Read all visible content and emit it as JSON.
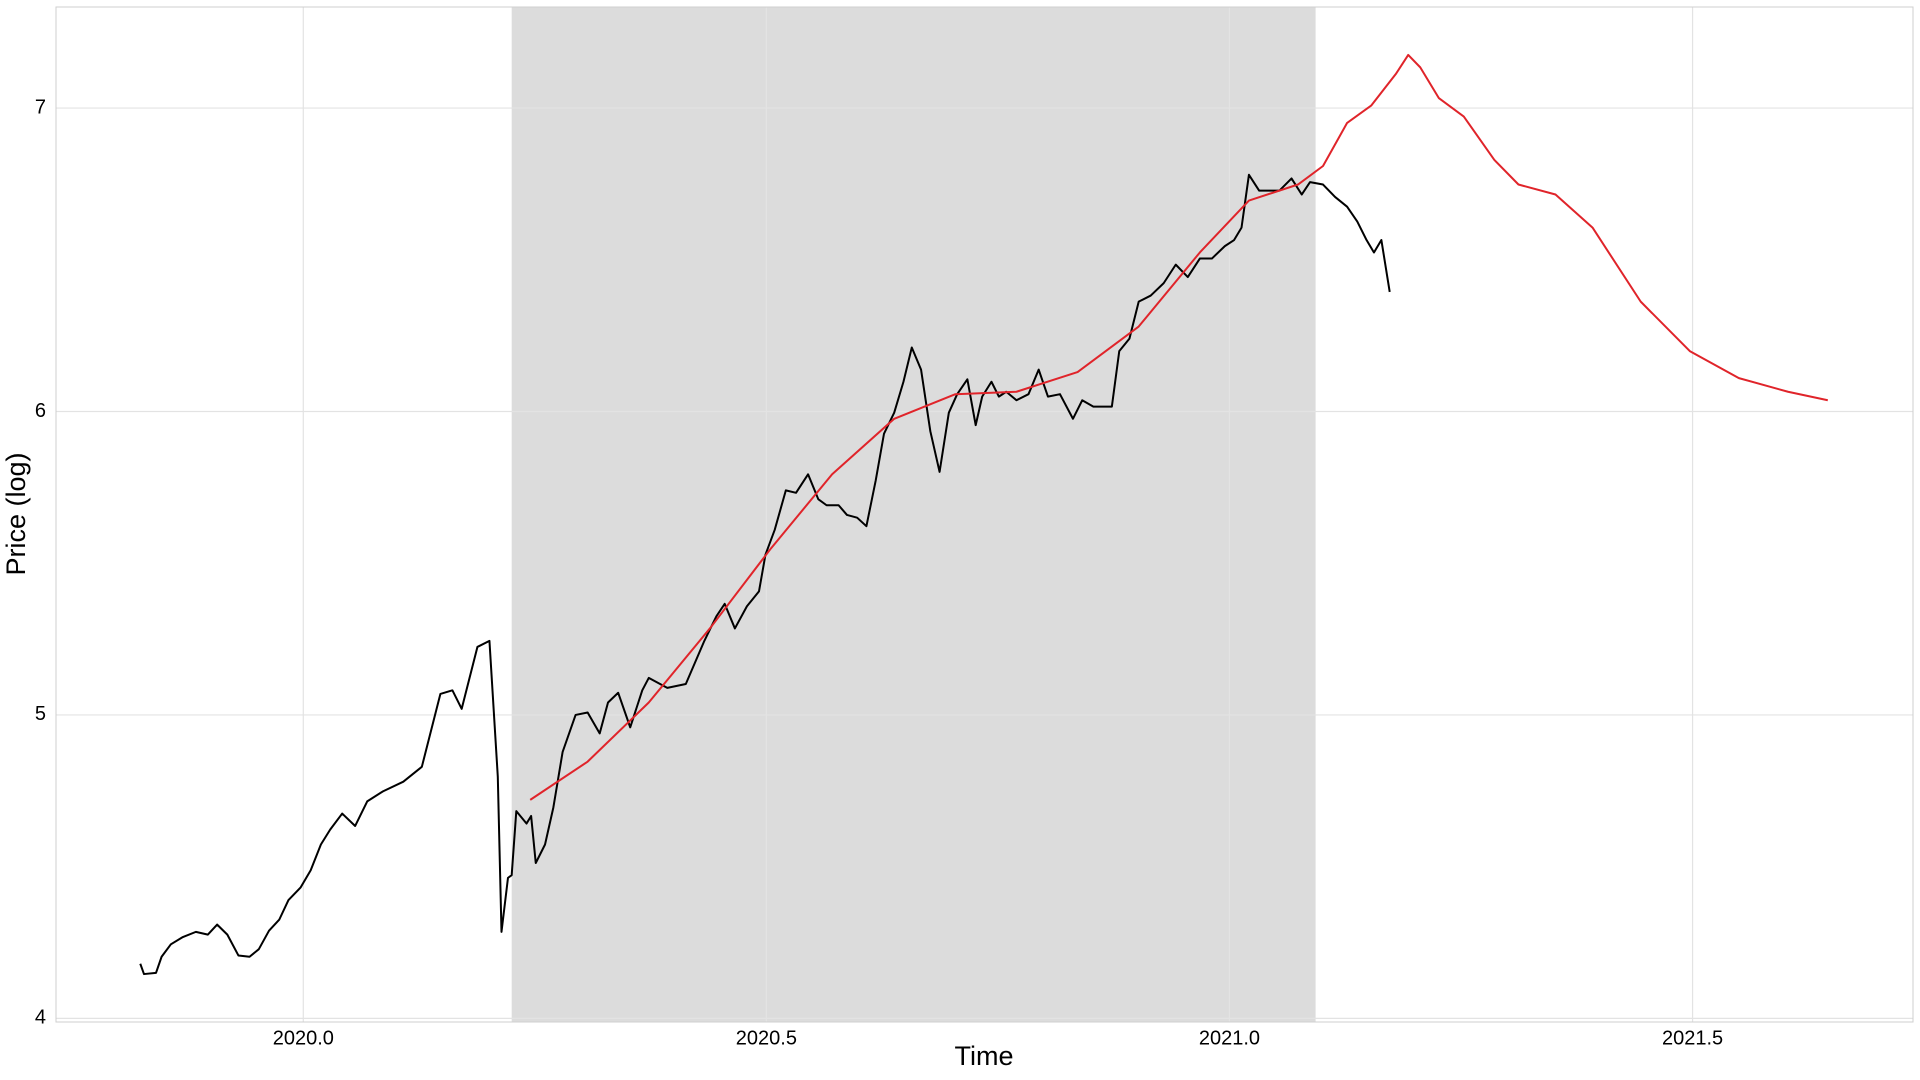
{
  "chart_data": {
    "type": "line",
    "x_label": "Time",
    "y_label": "Price (log)",
    "xlim": [
      2019.733,
      2021.738
    ],
    "ylim": [
      3.988,
      7.333
    ],
    "xticks": [
      {
        "value": 2020,
        "label": "2020.0"
      },
      {
        "value": 2020.5,
        "label": "2020.5"
      },
      {
        "value": 2021,
        "label": "2021.0"
      },
      {
        "value": 2021.5,
        "label": "2021.5"
      }
    ],
    "yticks": [
      4,
      5,
      6,
      7
    ],
    "grid": true,
    "shaded_region": [
      2020.225,
      2021.093
    ],
    "shade_color": "#dcdcdc",
    "series": [
      {
        "color": "#000000",
        "x": [
          2019.824,
          2019.828,
          2019.841,
          2019.847,
          2019.857,
          2019.87,
          2019.884,
          2019.897,
          2019.907,
          2019.918,
          2019.93,
          2019.942,
          2019.952,
          2019.963,
          2019.974,
          2019.984,
          2019.997,
          2020.008,
          2020.019,
          2020.029,
          2020.042,
          2020.056,
          2020.069,
          2020.086,
          2020.108,
          2020.128,
          2020.148,
          2020.161,
          2020.171,
          2020.188,
          2020.201,
          2020.21,
          2020.214,
          2020.221,
          2020.225,
          2020.23,
          2020.241,
          2020.246,
          2020.251,
          2020.261,
          2020.27,
          2020.28,
          2020.294,
          2020.307,
          2020.32,
          2020.329,
          2020.34,
          2020.353,
          2020.366,
          2020.373,
          2020.393,
          2020.413,
          2020.433,
          2020.446,
          2020.455,
          2020.466,
          2020.479,
          2020.492,
          2020.499,
          2020.509,
          2020.521,
          2020.532,
          2020.545,
          2020.556,
          2020.565,
          2020.578,
          2020.587,
          2020.598,
          2020.608,
          2020.618,
          2020.627,
          2020.638,
          2020.648,
          2020.657,
          2020.667,
          2020.677,
          2020.687,
          2020.697,
          2020.706,
          2020.717,
          2020.726,
          2020.733,
          2020.743,
          2020.751,
          2020.759,
          2020.77,
          2020.783,
          2020.794,
          2020.804,
          2020.817,
          2020.831,
          2020.841,
          2020.853,
          2020.862,
          2020.873,
          2020.881,
          2020.892,
          2020.902,
          2020.915,
          2020.929,
          2020.942,
          2020.955,
          2020.968,
          2020.981,
          2020.995,
          2021.005,
          2021.013,
          2021.021,
          2021.032,
          2021.041,
          2021.054,
          2021.067,
          2021.078,
          2021.087,
          2021.101,
          2021.114,
          2021.127,
          2021.138,
          2021.148,
          2021.156,
          2021.164,
          2021.173
        ],
        "values": [
          4.18,
          4.146,
          4.15,
          4.203,
          4.244,
          4.268,
          4.285,
          4.276,
          4.309,
          4.276,
          4.207,
          4.203,
          4.228,
          4.289,
          4.325,
          4.39,
          4.431,
          4.488,
          4.573,
          4.622,
          4.675,
          4.634,
          4.715,
          4.748,
          4.78,
          4.829,
          5.069,
          5.081,
          5.02,
          5.224,
          5.244,
          4.797,
          4.285,
          4.463,
          4.472,
          4.683,
          4.642,
          4.667,
          4.512,
          4.573,
          4.695,
          4.878,
          5.0,
          5.008,
          4.939,
          5.041,
          5.073,
          4.959,
          5.081,
          5.122,
          5.089,
          5.102,
          5.244,
          5.325,
          5.366,
          5.285,
          5.358,
          5.407,
          5.528,
          5.61,
          5.74,
          5.732,
          5.793,
          5.711,
          5.691,
          5.691,
          5.659,
          5.65,
          5.622,
          5.772,
          5.927,
          5.996,
          6.098,
          6.211,
          6.138,
          5.935,
          5.801,
          5.996,
          6.057,
          6.106,
          5.955,
          6.049,
          6.098,
          6.049,
          6.065,
          6.037,
          6.057,
          6.138,
          6.049,
          6.057,
          5.976,
          6.037,
          6.016,
          6.016,
          6.016,
          6.199,
          6.24,
          6.362,
          6.382,
          6.423,
          6.484,
          6.443,
          6.504,
          6.504,
          6.545,
          6.565,
          6.606,
          6.78,
          6.728,
          6.728,
          6.728,
          6.768,
          6.715,
          6.756,
          6.748,
          6.707,
          6.675,
          6.626,
          6.565,
          6.524,
          6.565,
          6.394
        ]
      },
      {
        "color": "#e0242a",
        "x": [
          2020.245,
          2020.307,
          2020.373,
          2020.439,
          2020.505,
          2020.571,
          2020.638,
          2020.704,
          2020.77,
          2020.836,
          2020.902,
          2020.968,
          2021.021,
          2021.074,
          2021.101,
          2021.127,
          2021.153,
          2021.18,
          2021.193,
          2021.206,
          2021.226,
          2021.253,
          2021.286,
          2021.312,
          2021.352,
          2021.392,
          2021.444,
          2021.497,
          2021.55,
          2021.603,
          2021.646
        ],
        "values": [
          4.72,
          4.846,
          5.041,
          5.285,
          5.549,
          5.793,
          5.976,
          6.057,
          6.065,
          6.13,
          6.28,
          6.524,
          6.695,
          6.748,
          6.809,
          6.951,
          7.008,
          7.114,
          7.175,
          7.134,
          7.033,
          6.972,
          6.829,
          6.748,
          6.715,
          6.606,
          6.362,
          6.199,
          6.11,
          6.065,
          6.037
        ]
      }
    ]
  }
}
